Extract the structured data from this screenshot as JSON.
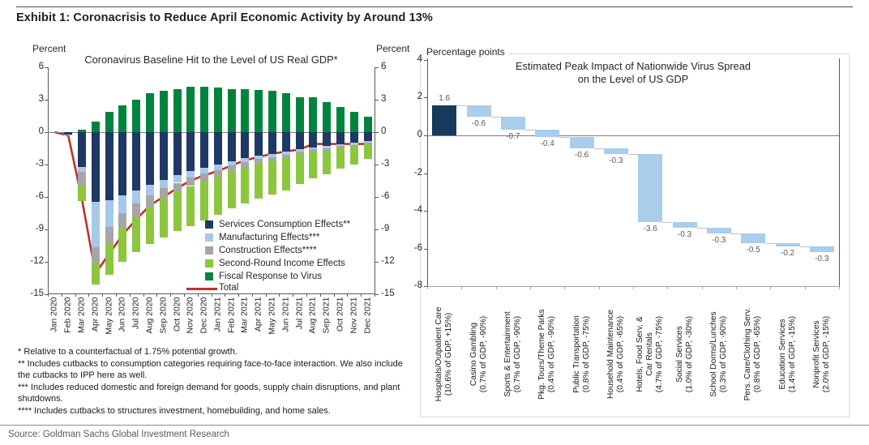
{
  "page": {
    "title": "Exhibit 1: Coronacrisis to Reduce April Economic Activity by Around 13%",
    "source": "Source: Goldman Sachs Global Investment Research"
  },
  "chart_data": [
    {
      "type": "bar",
      "subtype": "stacked-bars-with-total-line",
      "title": "Coronavirus Baseline Hit to the Level of US Real GDP*",
      "ylabel_left": "Percent",
      "ylabel_right": "Percent",
      "ylim": [
        -15,
        6
      ],
      "yticks": [
        6,
        3,
        0,
        -3,
        -6,
        -9,
        -12,
        -15
      ],
      "grid": false,
      "legend_position": "inside lower right",
      "categories": [
        "Jan 2020",
        "Feb 2020",
        "Mar 2020",
        "Apr 2020",
        "May 2020",
        "Jun 2020",
        "Jul 2020",
        "Aug 2020",
        "Sep 2020",
        "Oct 2020",
        "Nov 2020",
        "Dec 2020",
        "Jan 2021",
        "Feb 2021",
        "Mar 2021",
        "Apr 2021",
        "May 2021",
        "Jun 2021",
        "Jul 2021",
        "Aug 2021",
        "Sep 2021",
        "Oct 2021",
        "Nov 2021",
        "Dec 2021"
      ],
      "series": [
        {
          "name": "Services Consumption Effects**",
          "kind": "bar",
          "color": "#1F3864",
          "values": [
            0,
            -0.2,
            -3.2,
            -6.5,
            -6.3,
            -5.9,
            -5.4,
            -4.9,
            -4.4,
            -4.0,
            -3.6,
            -3.3,
            -3.0,
            -2.7,
            -2.4,
            -2.2,
            -2.0,
            -1.8,
            -1.6,
            -1.4,
            -1.3,
            -1.1,
            -1.0,
            -0.8
          ]
        },
        {
          "name": "Manufacturing Effects***",
          "kind": "bar",
          "color": "#A6C9E8",
          "values": [
            0,
            -0.1,
            -0.5,
            -4.2,
            -2.5,
            -1.6,
            -1.2,
            -1.0,
            -0.8,
            -0.7,
            -0.6,
            -0.5,
            -0.5,
            -0.4,
            -0.4,
            -0.3,
            -0.3,
            -0.3,
            -0.2,
            -0.2,
            -0.2,
            -0.2,
            -0.2,
            -0.2
          ]
        },
        {
          "name": "Construction Effects****",
          "kind": "bar",
          "color": "#A6A6A6",
          "values": [
            0,
            0,
            -1.2,
            -1.4,
            -1.5,
            -1.4,
            -1.3,
            -1.1,
            -1.0,
            -0.9,
            -0.8,
            -0.7,
            -0.6,
            -0.5,
            -0.4,
            -0.4,
            -0.3,
            -0.3,
            -0.2,
            -0.2,
            -0.2,
            -0.1,
            -0.1,
            -0.1
          ]
        },
        {
          "name": "Second-Round Income Effects",
          "kind": "bar",
          "color": "#8CC63F",
          "values": [
            0,
            0,
            -1.5,
            -2.0,
            -2.9,
            -3.1,
            -3.2,
            -3.4,
            -3.6,
            -3.6,
            -3.7,
            -3.7,
            -3.6,
            -3.5,
            -3.4,
            -3.3,
            -3.2,
            -3.0,
            -2.8,
            -2.5,
            -2.2,
            -2.0,
            -1.7,
            -1.4
          ]
        },
        {
          "name": "Fiscal Response to Virus",
          "kind": "bar",
          "color": "#00843D",
          "values": [
            0,
            0,
            0.2,
            1.0,
            1.9,
            2.5,
            3.0,
            3.6,
            3.8,
            4.0,
            4.2,
            4.2,
            4.1,
            4.0,
            4.0,
            3.9,
            3.8,
            3.6,
            3.2,
            3.2,
            2.8,
            2.3,
            1.9,
            1.4
          ]
        },
        {
          "name": "Total",
          "kind": "line",
          "color": "#C0302C",
          "values": [
            0,
            -0.3,
            -6.2,
            -13.1,
            -11.3,
            -9.5,
            -8.1,
            -6.8,
            -6.0,
            -5.2,
            -4.5,
            -4.0,
            -3.6,
            -3.1,
            -2.6,
            -2.3,
            -2.0,
            -1.8,
            -1.6,
            -1.1,
            -1.1,
            -1.1,
            -1.1,
            -1.1
          ]
        }
      ],
      "footnotes": [
        "* Relative to a counterfactual of 1.75% potential growth.",
        "** Includes cutbacks to consumption categories requiring face-to-face interaction. We also include the cutbacks to IPP here as well.",
        "*** Includes reduced domestic and foreign demand for goods, supply chain disruptions, and plant shutdowns.",
        "**** Includes cutbacks to structures investment, homebuilding, and home sales."
      ]
    },
    {
      "type": "bar",
      "subtype": "waterfall",
      "title_line1": "Estimated Peak Impact of Nationwide Virus Spread",
      "title_line2": "on the Level of US GDP",
      "ylabel": "Percentage points",
      "ylim": [
        -8,
        4
      ],
      "yticks": [
        4,
        2,
        0,
        -2,
        -4,
        -6,
        -8
      ],
      "grid": false,
      "start_bar_color": "#16395C",
      "bar_color": "#A9CDEA",
      "value_label_color": "#595959",
      "categories": [
        [
          "Hospitals/Outpatient Care",
          "(10.6% of GDP, +15%)"
        ],
        [
          "Casino Gambling",
          "(0.7% of GDP, -90%)"
        ],
        [
          "Sports & Entertainment",
          "(0.7% of GDP, -90%)"
        ],
        [
          "Pkg. Tours/Theme Parks",
          "(0.4% of GDP, -90%)"
        ],
        [
          "Public Transportation",
          "(0.8% of GDP, -75%)"
        ],
        [
          "Household Maintenance",
          "(0.4% of GDP, -65%)"
        ],
        [
          "Hotels, Food Serv, &",
          "Car Rentals",
          "(4.7% of GDP, -75%)"
        ],
        [
          "Social Services",
          "(1.0% of GDP, -30%)"
        ],
        [
          "School Dorms/Lunches",
          "(0.3% of GDP, -90%)"
        ],
        [
          "Pers. Care/Clothing Serv.",
          "(0.8% of GDP, -65%)"
        ],
        [
          "Education Services",
          "(1.4% of GDP, -15%)"
        ],
        [
          "Nonprofit Services",
          "(2.0% of GDP, -15%)"
        ]
      ],
      "values": [
        1.6,
        -0.6,
        -0.7,
        -0.4,
        -0.6,
        -0.3,
        -3.6,
        -0.3,
        -0.3,
        -0.5,
        -0.2,
        -0.3
      ]
    }
  ]
}
